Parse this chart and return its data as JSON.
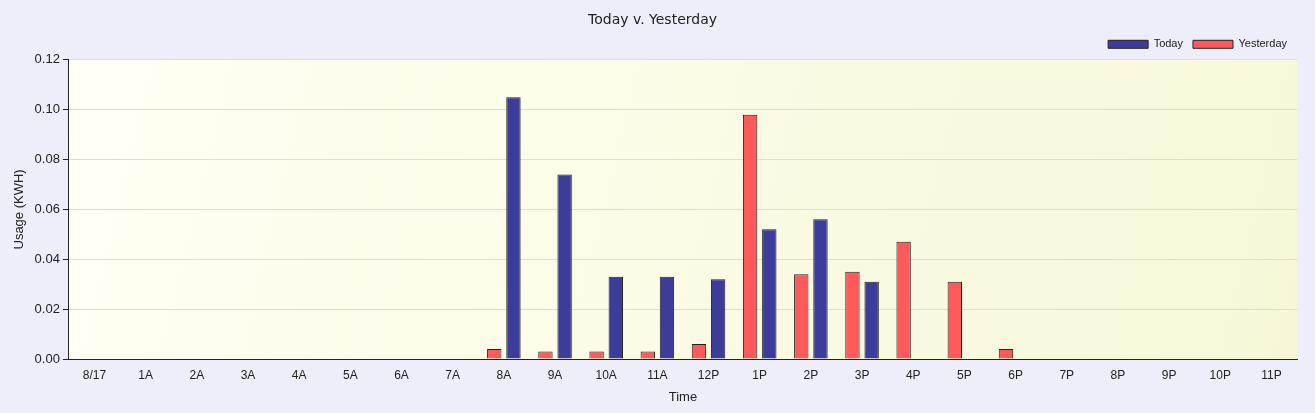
{
  "chart_data": {
    "type": "bar",
    "title": "Today v. Yesterday",
    "xlabel": "Time",
    "ylabel": "Usage (KWH)",
    "categories": [
      "8/17",
      "1A",
      "2A",
      "3A",
      "4A",
      "5A",
      "6A",
      "7A",
      "8A",
      "9A",
      "10A",
      "11A",
      "12P",
      "1P",
      "2P",
      "3P",
      "4P",
      "5P",
      "6P",
      "7P",
      "8P",
      "9P",
      "10P",
      "11P"
    ],
    "series": [
      {
        "name": "Yesterday",
        "color": "#ff5a5a",
        "values": [
          null,
          null,
          null,
          null,
          null,
          null,
          null,
          null,
          0.004,
          0.003,
          0.003,
          0.003,
          0.006,
          0.098,
          0.034,
          0.035,
          0.047,
          0.031,
          0.004,
          null,
          null,
          null,
          null,
          null
        ]
      },
      {
        "name": "Today",
        "color": "#3c3c9a",
        "values": [
          null,
          null,
          null,
          null,
          null,
          null,
          null,
          null,
          0.105,
          0.074,
          0.033,
          0.033,
          0.032,
          0.052,
          0.056,
          0.031,
          null,
          null,
          null,
          null,
          null,
          null,
          null,
          null
        ]
      }
    ],
    "ylim": [
      0,
      0.12
    ],
    "yticks": [
      {
        "value": 0,
        "label": "0.00"
      },
      0.02,
      0.04,
      0.06,
      0.08,
      {
        "value": 0.1,
        "label": "0.10"
      },
      0.12
    ],
    "grid": "y",
    "legend": "top right"
  }
}
